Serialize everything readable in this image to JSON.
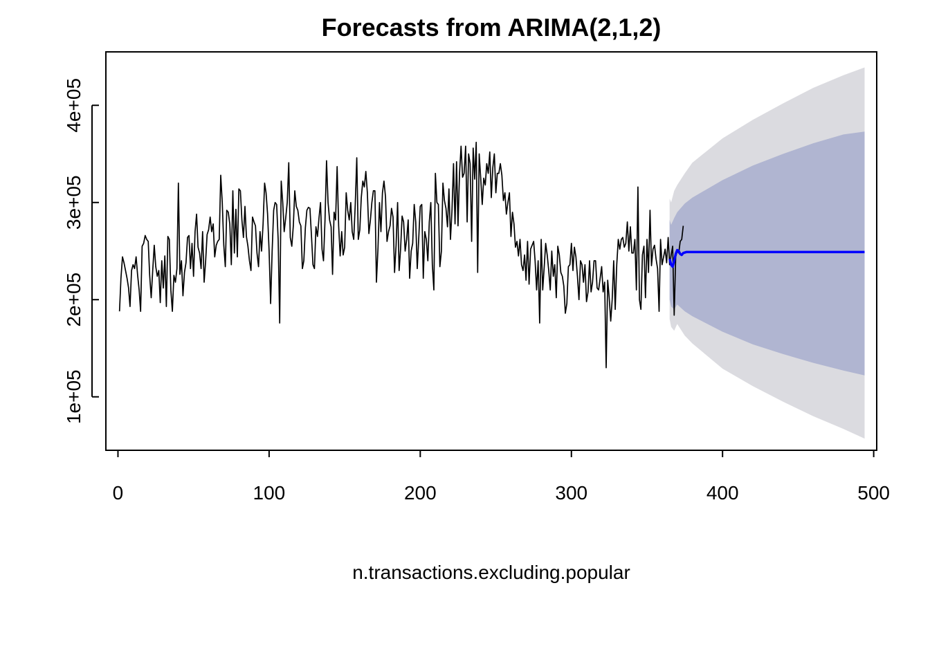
{
  "chart_data": {
    "type": "line",
    "title": "Forecasts from ARIMA(2,1,2)",
    "xlabel": "n.transactions.excluding.popular",
    "ylabel": "",
    "xlim": [
      -8,
      502
    ],
    "ylim": [
      45000,
      455000
    ],
    "x_ticks": [
      0,
      100,
      200,
      300,
      400,
      500
    ],
    "x_tick_labels": [
      "0",
      "100",
      "200",
      "300",
      "400",
      "500"
    ],
    "y_ticks": [
      100000,
      200000,
      300000,
      400000
    ],
    "y_tick_labels": [
      "1e+05",
      "2e+05",
      "3e+05",
      "4e+05"
    ],
    "grid": false,
    "legend": "none",
    "colors": {
      "observed": "#000000",
      "forecast": "#0000ff",
      "band95": "#dbdbe0",
      "band80": "#b0b5d1"
    },
    "series": [
      {
        "kind": "observed",
        "x_start": 1,
        "values": [
          188000,
          222000,
          244000,
          238000,
          230000,
          222000,
          212000,
          193000,
          230000,
          236000,
          232000,
          244000,
          225000,
          210000,
          188000,
          255000,
          258000,
          266000,
          262000,
          260000,
          225000,
          202000,
          230000,
          256000,
          234000,
          224000,
          230000,
          197000,
          240000,
          212000,
          245000,
          193000,
          265000,
          262000,
          210000,
          188000,
          225000,
          218000,
          232000,
          320000,
          226000,
          240000,
          204000,
          228000,
          238000,
          264000,
          266000,
          232000,
          258000,
          224000,
          270000,
          288000,
          254000,
          248000,
          232000,
          270000,
          218000,
          240000,
          267000,
          272000,
          285000,
          270000,
          278000,
          244000,
          256000,
          260000,
          262000,
          328000,
          300000,
          256000,
          234000,
          292000,
          290000,
          278000,
          236000,
          312000,
          248000,
          293000,
          244000,
          314000,
          312000,
          282000,
          264000,
          296000,
          265000,
          255000,
          240000,
          230000,
          285000,
          280000,
          276000,
          248000,
          234000,
          270000,
          250000,
          278000,
          320000,
          310000,
          288000,
          250000,
          196000,
          250000,
          292000,
          300000,
          298000,
          262000,
          176000,
          322000,
          300000,
          270000,
          284000,
          300000,
          341000,
          264000,
          255000,
          276000,
          312000,
          296000,
          292000,
          280000,
          276000,
          232000,
          240000,
          274000,
          292000,
          295000,
          294000,
          266000,
          236000,
          232000,
          275000,
          265000,
          284000,
          300000,
          252000,
          240000,
          282000,
          343000,
          300000,
          282000,
          275000,
          226000,
          290000,
          282000,
          337000,
          276000,
          245000,
          270000,
          246000,
          254000,
          310000,
          292000,
          282000,
          300000,
          270000,
          262000,
          298000,
          346000,
          262000,
          272000,
          305000,
          322000,
          316000,
          332000,
          310000,
          268000,
          282000,
          300000,
          312000,
          312000,
          218000,
          252000,
          300000,
          270000,
          310000,
          322000,
          306000,
          260000,
          270000,
          276000,
          294000,
          285000,
          228000,
          256000,
          300000,
          230000,
          252000,
          286000,
          280000,
          250000,
          262000,
          282000,
          222000,
          250000,
          258000,
          298000,
          280000,
          232000,
          264000,
          296000,
          298000,
          222000,
          270000,
          262000,
          240000,
          280000,
          300000,
          236000,
          210000,
          330000,
          300000,
          298000,
          234000,
          250000,
          320000,
          302000,
          294000,
          275000,
          314000,
          262000,
          292000,
          340000,
          278000,
          342000,
          276000,
          330000,
          358000,
          326000,
          330000,
          358000,
          280000,
          350000,
          340000,
          260000,
          356000,
          324000,
          362000,
          228000,
          350000,
          325000,
          298000,
          325000,
          318000,
          340000,
          330000,
          352000,
          305000,
          336000,
          350000,
          310000,
          330000,
          330000,
          340000,
          328000,
          302000,
          310000,
          288000,
          300000,
          310000,
          265000,
          290000,
          278000,
          254000,
          260000,
          245000,
          262000,
          236000,
          230000,
          246000,
          220000,
          260000,
          216000,
          252000,
          256000,
          260000,
          240000,
          210000,
          240000,
          176000,
          262000,
          210000,
          234000,
          258000,
          246000,
          230000,
          210000,
          250000,
          224000,
          236000,
          202000,
          255000,
          246000,
          228000,
          224000,
          214000,
          186000,
          196000,
          234000,
          236000,
          258000,
          230000,
          254000,
          244000,
          224000,
          200000,
          240000,
          236000,
          218000,
          236000,
          198000,
          208000,
          240000,
          208000,
          218000,
          240000,
          240000,
          212000,
          210000,
          222000,
          234000,
          208000,
          218000,
          130000,
          220000,
          202000,
          178000,
          200000,
          240000,
          190000,
          236000,
          262000,
          252000,
          262000,
          264000,
          254000,
          258000,
          280000,
          250000,
          275000,
          248000,
          248000,
          262000,
          210000,
          316000,
          200000,
          190000,
          246000,
          255000,
          202000,
          262000,
          228000,
          292000,
          235000,
          252000,
          256000,
          242000,
          232000,
          188000,
          262000,
          236000,
          244000,
          252000,
          238000,
          264000,
          236000,
          246000,
          255000,
          184000,
          244000,
          250000,
          248000,
          260000,
          262000,
          276000
        ]
      },
      {
        "kind": "forecast",
        "x": [
          365,
          366,
          367,
          368,
          369,
          370,
          371,
          372,
          373,
          374,
          376,
          378,
          380,
          400,
          420,
          440,
          460,
          480,
          494
        ],
        "values": [
          242000,
          236000,
          234000,
          240000,
          247000,
          251000,
          250000,
          247000,
          246000,
          248000,
          249000,
          249000,
          249000,
          249000,
          249000,
          249000,
          249000,
          249000,
          249000
        ]
      }
    ],
    "intervals": [
      {
        "level": "95",
        "x": [
          365,
          366,
          368,
          370,
          375,
          380,
          400,
          420,
          440,
          460,
          480,
          494
        ],
        "lower": [
          180000,
          172000,
          168000,
          175000,
          163000,
          155000,
          129000,
          111000,
          95000,
          80000,
          67000,
          57000
        ],
        "upper": [
          304000,
          300000,
          312000,
          318000,
          330000,
          341000,
          366000,
          385000,
          402000,
          418000,
          431000,
          439000
        ]
      },
      {
        "level": "80",
        "x": [
          365,
          366,
          368,
          370,
          375,
          380,
          400,
          420,
          440,
          460,
          480,
          494
        ],
        "lower": [
          200000,
          193000,
          190000,
          195000,
          188000,
          183000,
          167000,
          154000,
          144000,
          135000,
          127000,
          122000
        ],
        "upper": [
          282000,
          277000,
          284000,
          290000,
          299000,
          305000,
          323000,
          338000,
          350000,
          361000,
          370000,
          373000
        ]
      }
    ]
  }
}
